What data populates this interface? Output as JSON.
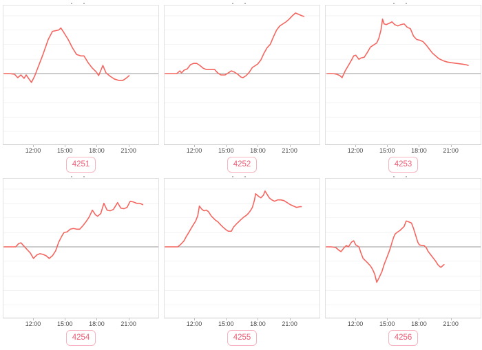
{
  "colors": {
    "line": "#f4655f",
    "zero_line": "#9a9a9a",
    "grid": "#f3f3f3",
    "panel_border": "#e1e1e1",
    "axis_border": "#c9c9c9",
    "tick_text": "#4a4a4a",
    "badge_text": "#ee5b74",
    "badge_border": "#f8b3c0",
    "background": "#ffffff"
  },
  "x_ticks": [
    "12:00",
    "15:00",
    "18:00",
    "21:00"
  ],
  "chart_data": [
    {
      "type": "line",
      "label": "4251",
      "x_ticks": [
        "12:00",
        "15:00",
        "18:00",
        "21:00"
      ],
      "x_unit": "hour_of_day",
      "x_range": [
        9.14,
        23.88
      ],
      "y_baseline": 0,
      "y_range": [
        -1.04,
        1.0
      ],
      "grid": true,
      "legend": "none",
      "points": [
        [
          9.2,
          0
        ],
        [
          9.7,
          0
        ],
        [
          10.2,
          -0.01
        ],
        [
          10.5,
          -0.06
        ],
        [
          10.8,
          -0.02
        ],
        [
          11.1,
          -0.07
        ],
        [
          11.3,
          -0.02
        ],
        [
          11.8,
          -0.13
        ],
        [
          12.1,
          -0.04
        ],
        [
          12.4,
          0.08
        ],
        [
          12.9,
          0.28
        ],
        [
          13.4,
          0.5
        ],
        [
          13.8,
          0.62
        ],
        [
          14.1,
          0.63
        ],
        [
          14.4,
          0.64
        ],
        [
          14.6,
          0.67
        ],
        [
          14.9,
          0.6
        ],
        [
          15.3,
          0.5
        ],
        [
          15.7,
          0.38
        ],
        [
          16.1,
          0.28
        ],
        [
          16.5,
          0.26
        ],
        [
          16.8,
          0.26
        ],
        [
          17.2,
          0.16
        ],
        [
          17.6,
          0.08
        ],
        [
          18.0,
          0.02
        ],
        [
          18.2,
          -0.03
        ],
        [
          18.6,
          0.12
        ],
        [
          18.9,
          0.01
        ],
        [
          19.3,
          -0.04
        ],
        [
          19.7,
          -0.08
        ],
        [
          20.1,
          -0.1
        ],
        [
          20.5,
          -0.1
        ],
        [
          20.8,
          -0.07
        ],
        [
          21.1,
          -0.03
        ]
      ]
    },
    {
      "type": "line",
      "label": "4252",
      "x_ticks": [
        "12:00",
        "15:00",
        "18:00",
        "21:00"
      ],
      "x_unit": "hour_of_day",
      "x_range": [
        9.14,
        23.88
      ],
      "y_baseline": 0,
      "y_range": [
        -1.04,
        1.0
      ],
      "grid": true,
      "legend": "none",
      "points": [
        [
          9.2,
          0
        ],
        [
          9.8,
          0
        ],
        [
          10.3,
          0
        ],
        [
          10.6,
          0.04
        ],
        [
          10.75,
          0.01
        ],
        [
          11.0,
          0.05
        ],
        [
          11.3,
          0.07
        ],
        [
          11.6,
          0.13
        ],
        [
          11.9,
          0.15
        ],
        [
          12.2,
          0.15
        ],
        [
          12.5,
          0.12
        ],
        [
          12.8,
          0.08
        ],
        [
          13.1,
          0.06
        ],
        [
          13.5,
          0.06
        ],
        [
          13.9,
          0.06
        ],
        [
          14.2,
          0.01
        ],
        [
          14.5,
          -0.02
        ],
        [
          14.9,
          -0.02
        ],
        [
          15.2,
          0.01
        ],
        [
          15.5,
          0.04
        ],
        [
          15.8,
          0.02
        ],
        [
          16.1,
          -0.01
        ],
        [
          16.4,
          -0.05
        ],
        [
          16.6,
          -0.06
        ],
        [
          16.9,
          -0.03
        ],
        [
          17.2,
          0.02
        ],
        [
          17.5,
          0.09
        ],
        [
          17.8,
          0.12
        ],
        [
          18.0,
          0.14
        ],
        [
          18.3,
          0.2
        ],
        [
          18.6,
          0.3
        ],
        [
          18.9,
          0.38
        ],
        [
          19.2,
          0.43
        ],
        [
          19.5,
          0.54
        ],
        [
          19.8,
          0.64
        ],
        [
          20.1,
          0.7
        ],
        [
          20.4,
          0.73
        ],
        [
          20.7,
          0.76
        ],
        [
          21.0,
          0.8
        ],
        [
          21.3,
          0.85
        ],
        [
          21.6,
          0.89
        ],
        [
          21.9,
          0.87
        ],
        [
          22.2,
          0.85
        ],
        [
          22.4,
          0.84
        ]
      ]
    },
    {
      "type": "line",
      "label": "4253",
      "x_ticks": [
        "12:00",
        "15:00",
        "18:00",
        "21:00"
      ],
      "x_unit": "hour_of_day",
      "x_range": [
        9.14,
        23.88
      ],
      "y_baseline": 0,
      "y_range": [
        -1.04,
        1.0
      ],
      "grid": true,
      "legend": "none",
      "points": [
        [
          9.3,
          0
        ],
        [
          9.8,
          0
        ],
        [
          10.2,
          -0.01
        ],
        [
          10.5,
          -0.03
        ],
        [
          10.7,
          -0.06
        ],
        [
          11.0,
          0.04
        ],
        [
          11.3,
          0.12
        ],
        [
          11.6,
          0.2
        ],
        [
          11.8,
          0.26
        ],
        [
          12.0,
          0.27
        ],
        [
          12.3,
          0.21
        ],
        [
          12.5,
          0.23
        ],
        [
          12.8,
          0.24
        ],
        [
          13.1,
          0.31
        ],
        [
          13.4,
          0.39
        ],
        [
          13.7,
          0.42
        ],
        [
          14.0,
          0.45
        ],
        [
          14.2,
          0.52
        ],
        [
          14.4,
          0.64
        ],
        [
          14.55,
          0.8
        ],
        [
          14.7,
          0.73
        ],
        [
          14.9,
          0.72
        ],
        [
          15.2,
          0.74
        ],
        [
          15.45,
          0.76
        ],
        [
          15.7,
          0.72
        ],
        [
          16.0,
          0.7
        ],
        [
          16.3,
          0.72
        ],
        [
          16.6,
          0.73
        ],
        [
          16.9,
          0.68
        ],
        [
          17.2,
          0.66
        ],
        [
          17.5,
          0.55
        ],
        [
          17.8,
          0.5
        ],
        [
          18.1,
          0.49
        ],
        [
          18.4,
          0.47
        ],
        [
          18.7,
          0.42
        ],
        [
          19.0,
          0.36
        ],
        [
          19.3,
          0.3
        ],
        [
          19.6,
          0.26
        ],
        [
          19.9,
          0.22
        ],
        [
          20.3,
          0.19
        ],
        [
          20.7,
          0.17
        ],
        [
          21.1,
          0.16
        ],
        [
          21.6,
          0.15
        ],
        [
          22.1,
          0.14
        ],
        [
          22.5,
          0.13
        ],
        [
          22.7,
          0.12
        ]
      ]
    },
    {
      "type": "line",
      "label": "4254",
      "x_ticks": [
        "12:00",
        "15:00",
        "18:00",
        "21:00"
      ],
      "x_unit": "hour_of_day",
      "x_range": [
        9.14,
        23.88
      ],
      "y_baseline": 0,
      "y_range": [
        -1.04,
        1.0
      ],
      "grid": true,
      "legend": "none",
      "points": [
        [
          9.2,
          0
        ],
        [
          9.8,
          0
        ],
        [
          10.3,
          0
        ],
        [
          10.6,
          0.05
        ],
        [
          10.8,
          0.06
        ],
        [
          11.1,
          0.01
        ],
        [
          11.4,
          -0.04
        ],
        [
          11.7,
          -0.09
        ],
        [
          12.0,
          -0.17
        ],
        [
          12.3,
          -0.12
        ],
        [
          12.6,
          -0.1
        ],
        [
          12.9,
          -0.11
        ],
        [
          13.2,
          -0.13
        ],
        [
          13.5,
          -0.17
        ],
        [
          13.8,
          -0.13
        ],
        [
          14.1,
          -0.06
        ],
        [
          14.4,
          0.07
        ],
        [
          14.7,
          0.16
        ],
        [
          14.9,
          0.21
        ],
        [
          15.2,
          0.22
        ],
        [
          15.5,
          0.26
        ],
        [
          15.8,
          0.27
        ],
        [
          16.1,
          0.26
        ],
        [
          16.4,
          0.26
        ],
        [
          16.7,
          0.31
        ],
        [
          17.0,
          0.37
        ],
        [
          17.3,
          0.44
        ],
        [
          17.6,
          0.54
        ],
        [
          17.9,
          0.47
        ],
        [
          18.1,
          0.45
        ],
        [
          18.4,
          0.49
        ],
        [
          18.7,
          0.64
        ],
        [
          19.0,
          0.54
        ],
        [
          19.3,
          0.53
        ],
        [
          19.6,
          0.55
        ],
        [
          20.0,
          0.65
        ],
        [
          20.3,
          0.57
        ],
        [
          20.6,
          0.56
        ],
        [
          20.9,
          0.58
        ],
        [
          21.2,
          0.67
        ],
        [
          21.5,
          0.66
        ],
        [
          21.8,
          0.64
        ],
        [
          22.1,
          0.64
        ],
        [
          22.4,
          0.62
        ]
      ]
    },
    {
      "type": "line",
      "label": "4255",
      "x_ticks": [
        "12:00",
        "15:00",
        "18:00",
        "21:00"
      ],
      "x_unit": "hour_of_day",
      "x_range": [
        9.14,
        23.88
      ],
      "y_baseline": 0,
      "y_range": [
        -1.04,
        1.0
      ],
      "grid": true,
      "legend": "none",
      "points": [
        [
          9.2,
          0
        ],
        [
          9.8,
          0
        ],
        [
          10.4,
          0
        ],
        [
          10.7,
          0.04
        ],
        [
          11.0,
          0.09
        ],
        [
          11.2,
          0.15
        ],
        [
          11.4,
          0.2
        ],
        [
          11.7,
          0.28
        ],
        [
          11.9,
          0.33
        ],
        [
          12.1,
          0.38
        ],
        [
          12.3,
          0.46
        ],
        [
          12.45,
          0.6
        ],
        [
          12.7,
          0.55
        ],
        [
          12.9,
          0.53
        ],
        [
          13.1,
          0.54
        ],
        [
          13.3,
          0.52
        ],
        [
          13.6,
          0.45
        ],
        [
          13.8,
          0.42
        ],
        [
          14.0,
          0.39
        ],
        [
          14.2,
          0.37
        ],
        [
          14.5,
          0.32
        ],
        [
          14.7,
          0.29
        ],
        [
          15.0,
          0.25
        ],
        [
          15.2,
          0.23
        ],
        [
          15.5,
          0.23
        ],
        [
          15.7,
          0.29
        ],
        [
          16.0,
          0.34
        ],
        [
          16.2,
          0.37
        ],
        [
          16.4,
          0.4
        ],
        [
          16.7,
          0.44
        ],
        [
          16.9,
          0.46
        ],
        [
          17.1,
          0.49
        ],
        [
          17.3,
          0.53
        ],
        [
          17.5,
          0.58
        ],
        [
          17.7,
          0.69
        ],
        [
          17.8,
          0.78
        ],
        [
          18.1,
          0.74
        ],
        [
          18.3,
          0.72
        ],
        [
          18.55,
          0.76
        ],
        [
          18.7,
          0.82
        ],
        [
          18.9,
          0.77
        ],
        [
          19.1,
          0.72
        ],
        [
          19.35,
          0.69
        ],
        [
          19.6,
          0.67
        ],
        [
          19.9,
          0.69
        ],
        [
          20.2,
          0.69
        ],
        [
          20.5,
          0.68
        ],
        [
          20.8,
          0.65
        ],
        [
          21.1,
          0.62
        ],
        [
          21.4,
          0.6
        ],
        [
          21.7,
          0.58
        ],
        [
          22.0,
          0.59
        ],
        [
          22.15,
          0.59
        ]
      ]
    },
    {
      "type": "line",
      "label": "4256",
      "x_ticks": [
        "12:00",
        "15:00",
        "18:00",
        "21:00"
      ],
      "x_unit": "hour_of_day",
      "x_range": [
        9.14,
        23.88
      ],
      "y_baseline": 0,
      "y_range": [
        -1.04,
        1.0
      ],
      "grid": true,
      "legend": "none",
      "points": [
        [
          9.2,
          0
        ],
        [
          9.7,
          0
        ],
        [
          10.1,
          -0.01
        ],
        [
          10.4,
          -0.05
        ],
        [
          10.6,
          -0.07
        ],
        [
          10.9,
          -0.01
        ],
        [
          11.1,
          0.02
        ],
        [
          11.3,
          0.0
        ],
        [
          11.6,
          0.07
        ],
        [
          11.8,
          0.09
        ],
        [
          12.0,
          0.03
        ],
        [
          12.3,
          0.0
        ],
        [
          12.5,
          -0.09
        ],
        [
          12.7,
          -0.17
        ],
        [
          12.9,
          -0.2
        ],
        [
          13.1,
          -0.23
        ],
        [
          13.4,
          -0.28
        ],
        [
          13.6,
          -0.33
        ],
        [
          13.8,
          -0.4
        ],
        [
          14.0,
          -0.52
        ],
        [
          14.2,
          -0.46
        ],
        [
          14.5,
          -0.36
        ],
        [
          14.7,
          -0.26
        ],
        [
          14.95,
          -0.16
        ],
        [
          15.2,
          -0.06
        ],
        [
          15.4,
          0.04
        ],
        [
          15.6,
          0.14
        ],
        [
          15.75,
          0.19
        ],
        [
          16.0,
          0.22
        ],
        [
          16.2,
          0.24
        ],
        [
          16.4,
          0.27
        ],
        [
          16.6,
          0.3
        ],
        [
          16.8,
          0.38
        ],
        [
          17.0,
          0.37
        ],
        [
          17.3,
          0.35
        ],
        [
          17.5,
          0.27
        ],
        [
          17.7,
          0.17
        ],
        [
          17.9,
          0.07
        ],
        [
          18.05,
          0.03
        ],
        [
          18.3,
          0.02
        ],
        [
          18.5,
          0.02
        ],
        [
          18.7,
          -0.01
        ],
        [
          18.9,
          -0.07
        ],
        [
          19.1,
          -0.11
        ],
        [
          19.3,
          -0.15
        ],
        [
          19.6,
          -0.21
        ],
        [
          19.8,
          -0.26
        ],
        [
          20.0,
          -0.29
        ],
        [
          20.1,
          -0.3
        ],
        [
          20.25,
          -0.28
        ],
        [
          20.4,
          -0.26
        ]
      ]
    }
  ]
}
